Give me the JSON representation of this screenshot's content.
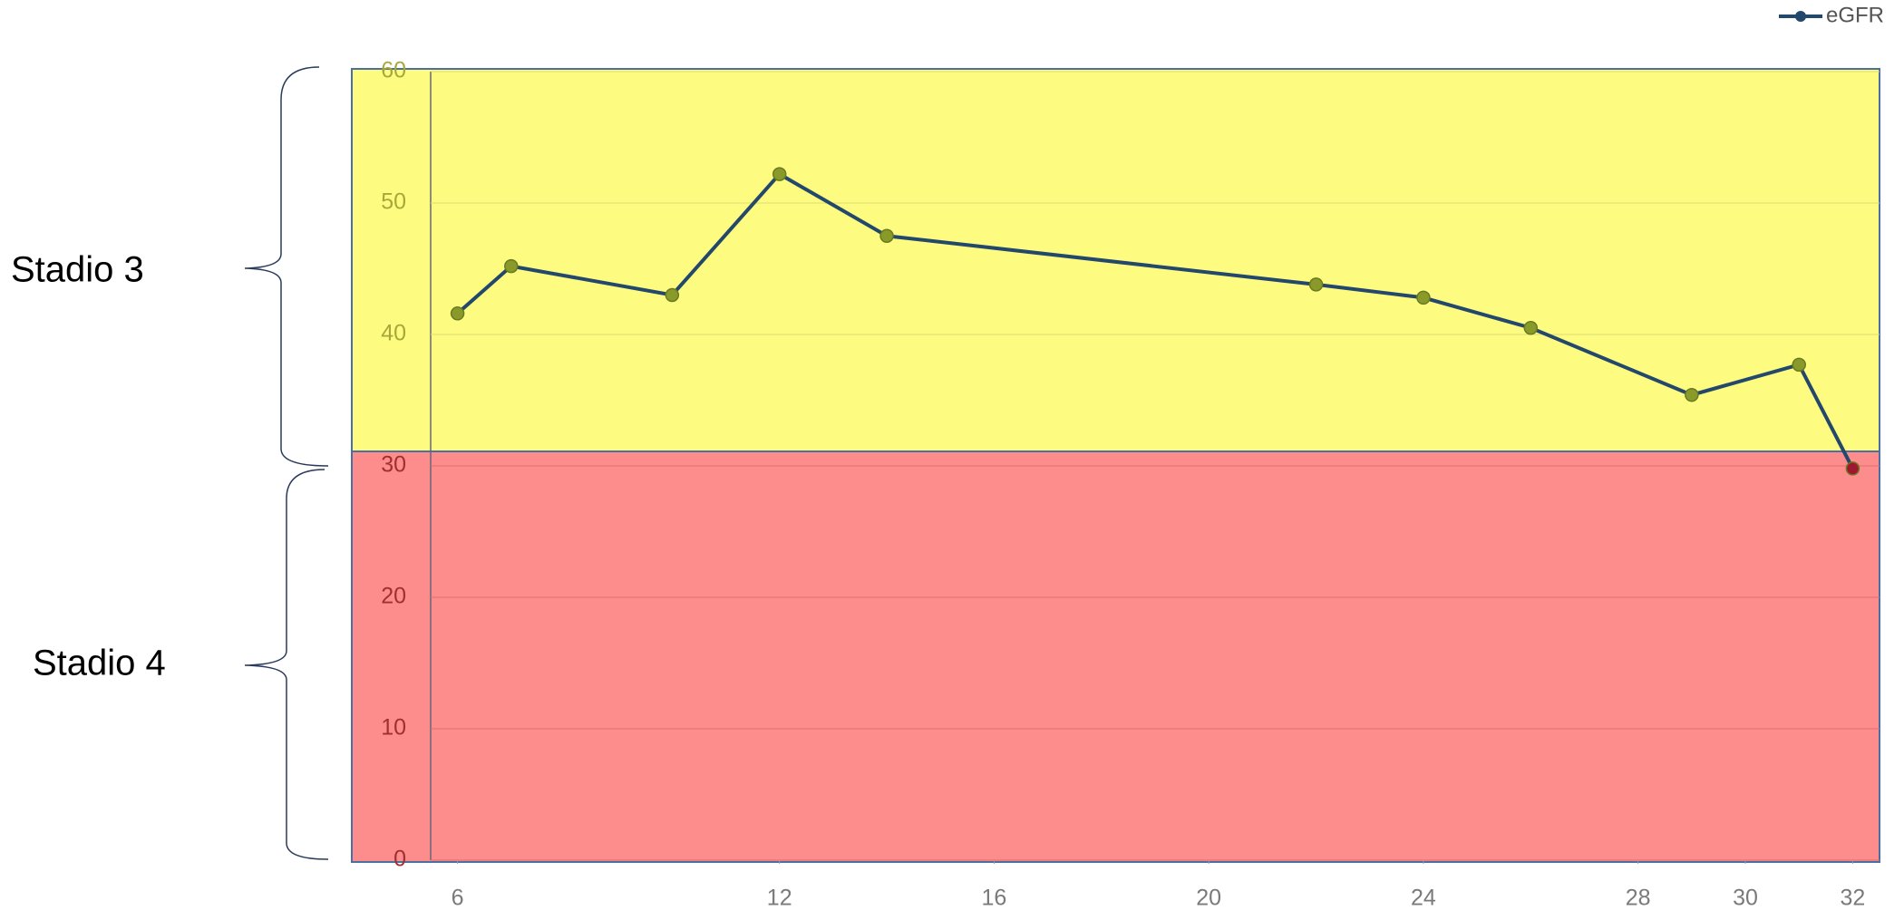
{
  "chart_data": {
    "type": "line",
    "annotations": [
      "Stadio 3",
      "Stadio 4"
    ],
    "x": [
      6,
      7,
      10,
      12,
      14,
      22,
      24,
      26,
      29,
      31,
      32
    ],
    "series": [
      {
        "name": "eGFR",
        "color": "#24486b",
        "marker_color": "#8a9a2a",
        "values": [
          41.6,
          45.2,
          43.0,
          52.2,
          47.5,
          43.8,
          42.8,
          40.5,
          35.4,
          37.7,
          29.8
        ]
      }
    ],
    "xlim": [
      5.5,
      32.5
    ],
    "xticks": [
      6,
      12,
      16,
      20,
      24,
      28,
      30,
      32
    ],
    "ylim": [
      0,
      60
    ],
    "yticks": [
      0,
      10,
      20,
      30,
      40,
      50,
      60
    ],
    "grid": true,
    "legend": "top-right"
  }
}
